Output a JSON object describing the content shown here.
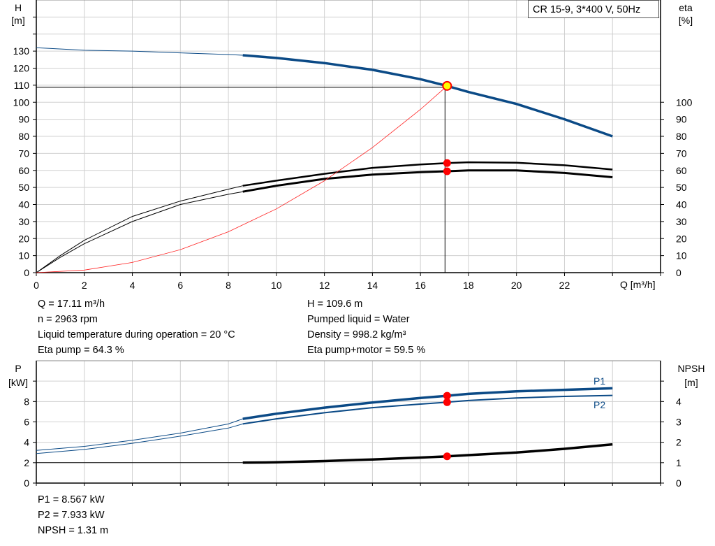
{
  "title_box": "CR 15-9, 3*400 V, 50Hz",
  "colors": {
    "head": "#0b4a86",
    "efficiency": "#000000",
    "system": "#ff2020",
    "power": "#0b4a86",
    "npsh": "#000000",
    "point": "#ff0000",
    "duty_point_fill": "#ffff00",
    "grid": "#d0d0d0"
  },
  "chart_data": [
    {
      "type": "line",
      "xlabel": "Q [m³/h]",
      "ylabel": "H",
      "ylabel_unit": "[m]",
      "y2label": "eta",
      "y2label_unit": "[%]",
      "xlim": [
        0,
        26
      ],
      "ylim": [
        0,
        160
      ],
      "y2lim": [
        0,
        160
      ],
      "grid": true,
      "xticks": [
        0,
        2,
        4,
        6,
        8,
        10,
        12,
        14,
        16,
        18,
        20,
        22
      ],
      "yticks": [
        0,
        10,
        20,
        30,
        40,
        50,
        60,
        70,
        80,
        90,
        100,
        110,
        120,
        130
      ],
      "y2ticks": [
        0,
        10,
        20,
        30,
        40,
        50,
        60,
        70,
        80,
        90,
        100
      ],
      "bold_from_q": 8.6,
      "series": [
        {
          "id": "head",
          "axis": "left",
          "x": [
            0,
            2,
            4,
            6,
            8,
            8.6,
            10,
            12,
            14,
            16,
            17.11,
            18,
            20,
            22,
            24
          ],
          "y": [
            132,
            130.5,
            130,
            129,
            128,
            127.6,
            126,
            123,
            119,
            113.5,
            109.6,
            106,
            99,
            90,
            80
          ]
        },
        {
          "id": "eta_pump",
          "axis": "right",
          "x": [
            0,
            1,
            2,
            4,
            6,
            8,
            8.6,
            10,
            12,
            14,
            16,
            17.11,
            18,
            20,
            22,
            24
          ],
          "y": [
            0,
            10,
            19,
            33,
            42,
            49,
            51,
            54,
            58,
            61.5,
            63.5,
            64.3,
            64.8,
            64.5,
            63,
            60.5
          ]
        },
        {
          "id": "eta_pump_motor",
          "axis": "right",
          "x": [
            0,
            1,
            2,
            4,
            6,
            8,
            8.6,
            10,
            12,
            14,
            16,
            17.11,
            18,
            20,
            22,
            24
          ],
          "y": [
            0,
            9,
            17,
            30,
            40,
            46,
            47.5,
            51,
            55,
            57.5,
            59,
            59.5,
            60,
            60,
            58.5,
            56
          ]
        },
        {
          "id": "system",
          "axis": "left",
          "x": [
            0,
            2,
            4,
            6,
            8,
            10,
            12,
            14,
            16,
            17.11
          ],
          "y": [
            0,
            1.5,
            6,
            13.5,
            24,
            37.4,
            53.9,
            73.4,
            95.8,
            109.6
          ]
        }
      ],
      "duty_point": {
        "q": 17.11,
        "h": 109.6,
        "eta_pump": 64.3,
        "eta_pump_motor": 59.5
      }
    },
    {
      "type": "line",
      "ylabel": "P",
      "ylabel_unit": "[kW]",
      "y2label": "NPSH",
      "y2label_unit": "[m]",
      "xlim": [
        0,
        26
      ],
      "ylim": [
        0,
        12
      ],
      "y2lim": [
        0,
        6
      ],
      "grid": true,
      "yticks": [
        0,
        2,
        4,
        6,
        8
      ],
      "y2ticks": [
        0,
        1,
        2,
        3,
        4
      ],
      "bold_from_q": 8.6,
      "series": [
        {
          "id": "P1",
          "name": "P1",
          "axis": "left",
          "x": [
            0,
            2,
            4,
            6,
            8,
            8.6,
            10,
            12,
            14,
            16,
            17.11,
            18,
            20,
            22,
            24
          ],
          "y": [
            3.2,
            3.6,
            4.2,
            4.9,
            5.8,
            6.3,
            6.8,
            7.4,
            7.9,
            8.35,
            8.567,
            8.75,
            9.0,
            9.15,
            9.3
          ]
        },
        {
          "id": "P2",
          "name": "P2",
          "axis": "left",
          "x": [
            0,
            2,
            4,
            6,
            8,
            8.6,
            10,
            12,
            14,
            16,
            17.11,
            18,
            20,
            22,
            24
          ],
          "y": [
            2.9,
            3.3,
            3.9,
            4.6,
            5.4,
            5.8,
            6.3,
            6.9,
            7.4,
            7.75,
            7.933,
            8.1,
            8.35,
            8.5,
            8.6
          ]
        },
        {
          "id": "NPSH",
          "axis": "right",
          "x": [
            0,
            8.6,
            10,
            12,
            14,
            16,
            17.11,
            18,
            20,
            22,
            24
          ],
          "y": [
            1,
            1,
            1.02,
            1.08,
            1.16,
            1.25,
            1.31,
            1.37,
            1.5,
            1.68,
            1.9
          ]
        }
      ],
      "duty_point": {
        "q": 17.11,
        "p1": 8.567,
        "p2": 7.933,
        "npsh": 1.31
      }
    }
  ],
  "info_top_left": [
    "Q = 17.11 m³/h",
    "n = 2963 rpm",
    "Liquid temperature during operation = 20 °C",
    "Eta pump = 64.3 %"
  ],
  "info_top_right": [
    "H = 109.6 m",
    "Pumped liquid = Water",
    "Density = 998.2 kg/m³",
    "Eta pump+motor = 59.5 %"
  ],
  "info_bottom": [
    "P1 = 8.567 kW",
    "P2 = 7.933 kW",
    "NPSH = 1.31 m"
  ]
}
